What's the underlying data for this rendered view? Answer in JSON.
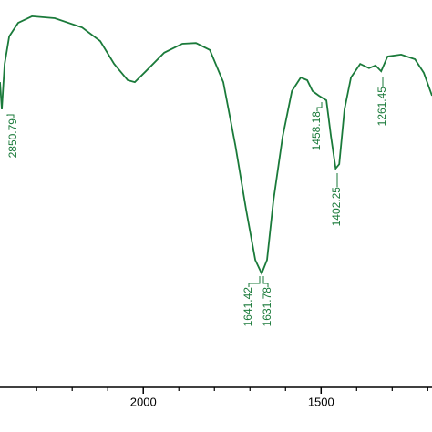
{
  "chart_data": {
    "type": "line",
    "x": [
      2403,
      2398,
      2390,
      2377,
      2352,
      2313,
      2249,
      2172,
      2121,
      2082,
      2044,
      2024,
      1993,
      1941,
      1890,
      1852,
      1813,
      1775,
      1741,
      1711,
      1685,
      1667,
      1652,
      1634,
      1608,
      1582,
      1557,
      1539,
      1524,
      1506,
      1485,
      1472,
      1459,
      1449,
      1434,
      1416,
      1390,
      1365,
      1347,
      1331,
      1313,
      1275,
      1236,
      1211,
      1188
    ],
    "series": [
      {
        "color": "#1a7a3a",
        "values": [
          78.8,
          71.8,
          83.5,
          90.6,
          94.1,
          95.8,
          95.3,
          92.9,
          89.4,
          83.5,
          79.3,
          78.8,
          81.6,
          86.4,
          88.7,
          88.9,
          87.1,
          78.8,
          62.4,
          45.9,
          32.9,
          29.4,
          32.9,
          48.2,
          64.7,
          76.5,
          80,
          79.3,
          76.5,
          75.3,
          74.1,
          64.7,
          56.5,
          57.6,
          71.8,
          80,
          83.5,
          82.4,
          83.1,
          81.6,
          85.4,
          85.9,
          84.7,
          81.2,
          75.3
        ]
      }
    ],
    "xlim": [
      2403,
      1188
    ],
    "ylim": [
      0,
      100
    ],
    "xticks": [
      2000,
      1500
    ],
    "minor_xticks": [
      2300,
      2200,
      2100,
      1900,
      1800,
      1700,
      1600,
      1400,
      1300,
      1200
    ],
    "annotations": [
      "2850.79",
      "1641.42",
      "1631.78",
      "1458.18",
      "1402.25",
      "1261.45"
    ]
  }
}
